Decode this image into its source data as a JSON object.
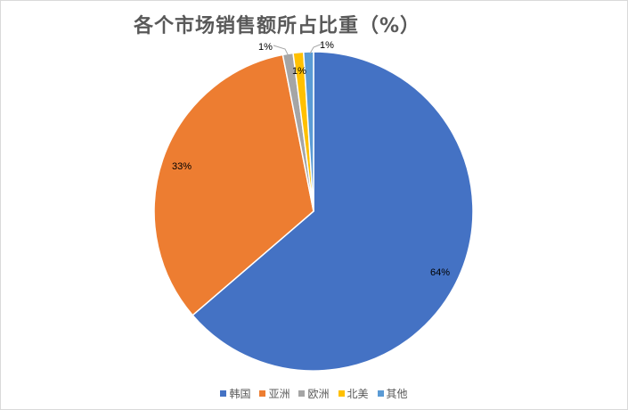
{
  "chart_data": {
    "type": "pie",
    "title": "各个市场销售额所占比重（%）",
    "categories": [
      "韩国",
      "亚洲",
      "欧洲",
      "北美",
      "其他"
    ],
    "values": [
      64,
      33,
      1,
      1,
      1
    ],
    "labels": [
      "64%",
      "33%",
      "1%",
      "1%",
      "1%"
    ],
    "colors": [
      "#4472c4",
      "#ed7d31",
      "#a5a5a5",
      "#ffc000",
      "#5b9bd5"
    ],
    "legend_position": "bottom"
  }
}
